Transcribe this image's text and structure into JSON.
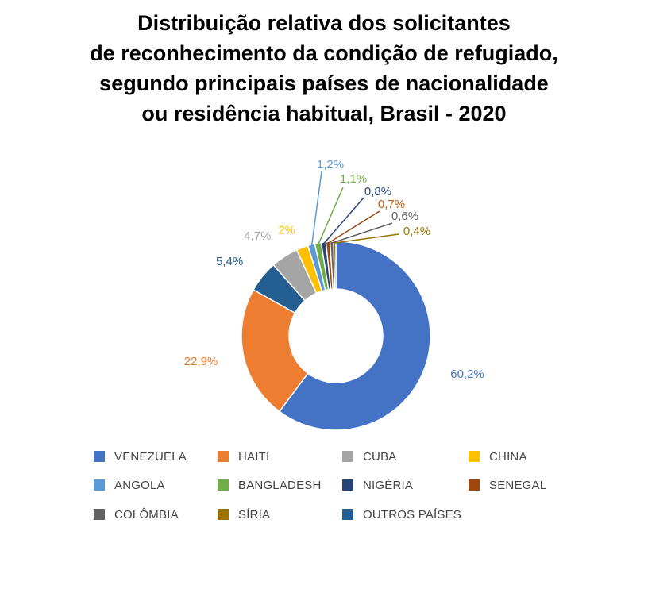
{
  "chart_data": {
    "type": "pie",
    "style": "donut",
    "title_lines": [
      "Distribuição relativa dos solicitantes",
      "de reconhecimento da condição de refugiado,",
      "segundo principais países de nacionalidade",
      "ou residência habitual, Brasil - 2020"
    ],
    "legend_position": "bottom",
    "slices": [
      {
        "name": "VENEZUELA",
        "value": 60.2,
        "label": "60,2%",
        "color": "#4472c4",
        "label_color": "#4472c4"
      },
      {
        "name": "HAITI",
        "value": 22.9,
        "label": "22,9%",
        "color": "#ed7d31",
        "label_color": "#ed7d31"
      },
      {
        "name": "OUTROS PAÍSES",
        "value": 5.4,
        "label": "5,4%",
        "color": "#255e91",
        "label_color": "#255e91"
      },
      {
        "name": "CUBA",
        "value": 4.7,
        "label": "4,7%",
        "color": "#a5a5a5",
        "label_color": "#a5a5a5"
      },
      {
        "name": "CHINA",
        "value": 2.0,
        "label": "2%",
        "color": "#ffc000",
        "label_color": "#ffc000"
      },
      {
        "name": "ANGOLA",
        "value": 1.2,
        "label": "1,2%",
        "color": "#5b9bd5",
        "label_color": "#5b9bd5"
      },
      {
        "name": "BANGLADESH",
        "value": 1.1,
        "label": "1,1%",
        "color": "#70ad47",
        "label_color": "#70ad47"
      },
      {
        "name": "NIGÉRIA",
        "value": 0.8,
        "label": "0,8%",
        "color": "#264478",
        "label_color": "#264478"
      },
      {
        "name": "SENEGAL",
        "value": 0.7,
        "label": "0,7%",
        "color": "#9e480e",
        "label_color": "#c55a11"
      },
      {
        "name": "COLÔMBIA",
        "value": 0.6,
        "label": "0,6%",
        "color": "#636363",
        "label_color": "#636363"
      },
      {
        "name": "SÍRIA",
        "value": 0.4,
        "label": "0,4%",
        "color": "#997300",
        "label_color": "#997300"
      }
    ],
    "legend_order": [
      "VENEZUELA",
      "HAITI",
      "CUBA",
      "CHINA",
      "ANGOLA",
      "BANGLADESH",
      "NIGÉRIA",
      "SENEGAL",
      "COLÔMBIA",
      "SÍRIA",
      "OUTROS PAÍSES"
    ]
  }
}
